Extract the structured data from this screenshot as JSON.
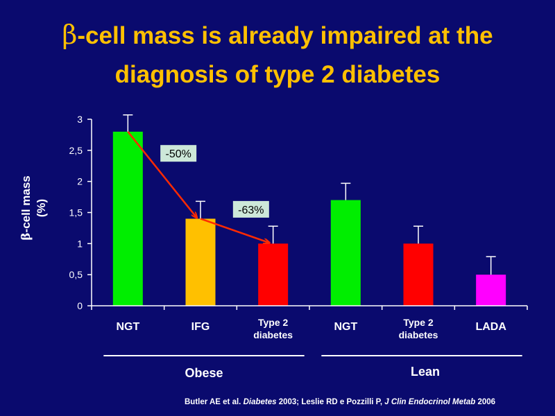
{
  "slide": {
    "title_symbol": "β",
    "title_line1": "-cell mass is already impaired at the",
    "title_line2": "diagnosis of type 2 diabetes",
    "citation": {
      "part1": "Butler AE et al. ",
      "journal1": "Diabetes",
      "part2": " 2003; Leslie RD e Pozzilli P, ",
      "journal2": "J Clin Endocrinol Metab",
      "part3": " 2006"
    }
  },
  "chart_data": {
    "type": "bar",
    "categories": [
      "NGT",
      "IFG",
      "Type 2\ndiabetes",
      "NGT",
      "Type 2\ndiabetes",
      "LADA"
    ],
    "values": [
      2.8,
      1.4,
      1.0,
      1.7,
      1.0,
      0.5
    ],
    "errors": [
      0.27,
      0.28,
      0.28,
      0.27,
      0.28,
      0.29
    ],
    "colors": [
      "#00ee00",
      "#ffc000",
      "#ff0000",
      "#00ee00",
      "#ff0000",
      "#ff00ff"
    ],
    "ylabel_symbol": "β",
    "ylabel": "-cell mass",
    "ylabel_unit": "(%)",
    "ylim": [
      0,
      3
    ],
    "yticks": [
      "0",
      "0,5",
      "1",
      "1,5",
      "2",
      "2,5",
      "3"
    ],
    "groups": [
      {
        "label": "Obese",
        "from": 0,
        "to": 2
      },
      {
        "label": "Lean",
        "from": 3,
        "to": 5
      }
    ],
    "annotations": [
      {
        "text": "-50%",
        "from": 0,
        "to": 1
      },
      {
        "text": "-63%",
        "from": 1,
        "to": 2
      }
    ],
    "arrow_color": "#ff2a00",
    "annotation_box_color": "#cde8d9"
  }
}
